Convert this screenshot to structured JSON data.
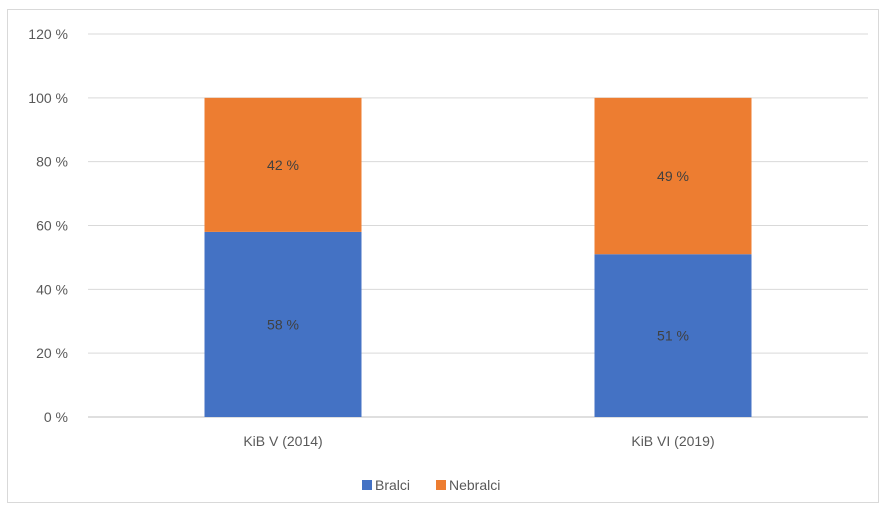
{
  "chart_data": {
    "type": "bar",
    "stacked": true,
    "categories": [
      "KiB V (2014)",
      "KiB VI (2019)"
    ],
    "series": [
      {
        "name": "Bralci",
        "values": [
          58,
          51
        ],
        "labels": [
          "58 %",
          "51 %"
        ],
        "color": "#4472c4"
      },
      {
        "name": "Nebralci",
        "values": [
          42,
          49
        ],
        "labels": [
          "42 %",
          "49 %"
        ],
        "color": "#ed7d31"
      }
    ],
    "yticks": [
      "0 %",
      "20 %",
      "40 %",
      "60 %",
      "80 %",
      "100 %",
      "120 %"
    ],
    "ylim": [
      0,
      120
    ],
    "grid": true,
    "legend_position": "bottom",
    "title": "",
    "xlabel": "",
    "ylabel": ""
  }
}
